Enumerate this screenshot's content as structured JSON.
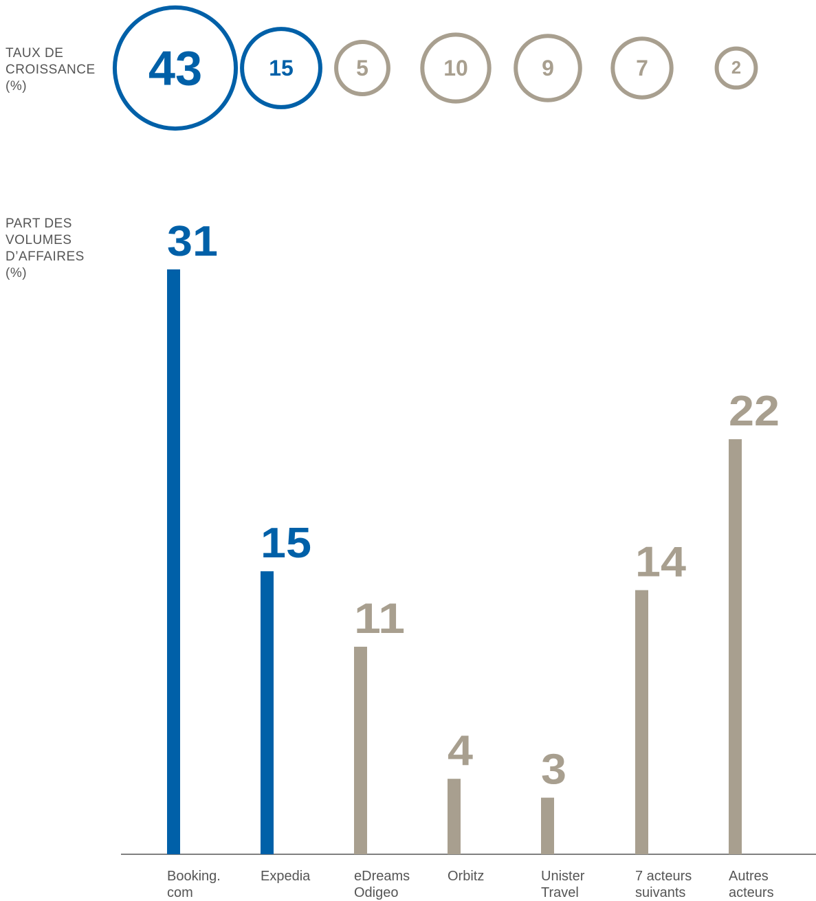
{
  "chart_data": [
    {
      "type": "bubble",
      "title": "TAUX DE\nCROISSANCE\n(%)",
      "categories": [
        "Booking.\ncom",
        "Expedia",
        "eDreams\nOdigeo",
        "Orbitz",
        "Unister\nTravel",
        "7 acteurs\nsuivants",
        "Autres\nacteurs"
      ],
      "values": [
        43,
        15,
        5,
        10,
        9,
        7,
        2
      ],
      "colors": [
        "#0060a8",
        "#0060a8",
        "#a89f8f",
        "#a89f8f",
        "#a89f8f",
        "#a89f8f",
        "#a89f8f"
      ]
    },
    {
      "type": "bar",
      "title": "PART DES\nVOLUMES\nD’AFFAIRES\n(%)",
      "categories": [
        "Booking.\ncom",
        "Expedia",
        "eDreams\nOdigeo",
        "Orbitz",
        "Unister\nTravel",
        "7 acteurs\nsuivants",
        "Autres\nacteurs"
      ],
      "values": [
        31,
        15,
        11,
        4,
        3,
        14,
        22
      ],
      "colors": [
        "#0060a8",
        "#0060a8",
        "#a89f8f",
        "#a89f8f",
        "#a89f8f",
        "#a89f8f",
        "#a89f8f"
      ],
      "ylim": [
        0,
        31
      ]
    }
  ]
}
